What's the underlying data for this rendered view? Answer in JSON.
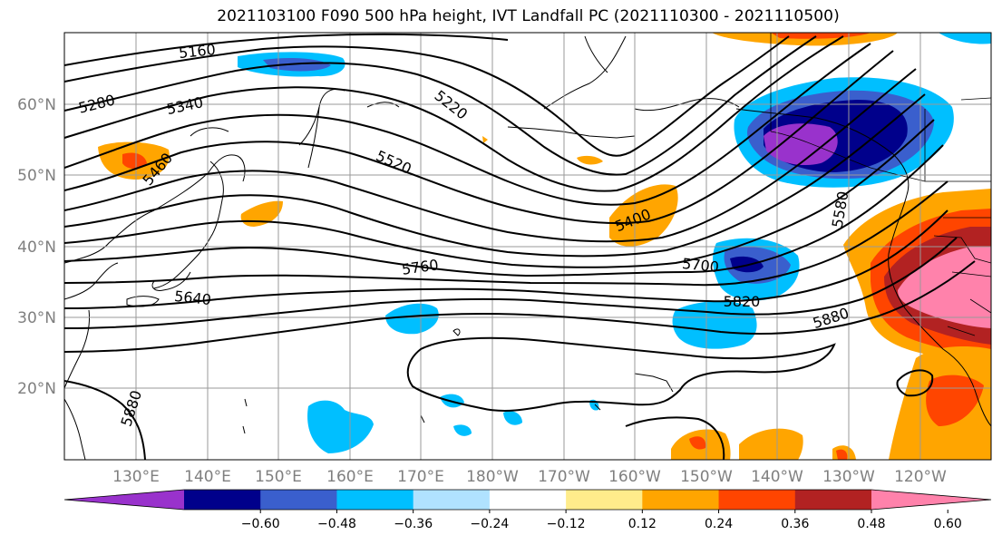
{
  "title": "2021103100 F090 500 hPa height, IVT Landfall PC (2021110300 - 2021110500)",
  "map": {
    "projection": "PlateCarree",
    "extent_lon": [
      120,
      250
    ],
    "extent_lat": [
      10,
      70
    ],
    "gridlines": true,
    "coastlines": true,
    "lat_labels": [
      "20°N",
      "30°N",
      "40°N",
      "50°N",
      "60°N"
    ],
    "lon_labels": [
      "130°E",
      "140°E",
      "150°E",
      "160°E",
      "170°E",
      "180°W",
      "170°W",
      "160°W",
      "150°W",
      "140°W",
      "130°W",
      "120°W"
    ]
  },
  "contours": {
    "field": "500 hPa height",
    "interval": 60,
    "labels": [
      "5160",
      "5280",
      "5340",
      "5220",
      "5520",
      "5460",
      "5400",
      "5580",
      "5640",
      "5760",
      "5700",
      "5820",
      "5880",
      "5880"
    ]
  },
  "colorbar": {
    "orientation": "horizontal",
    "extend": "both",
    "ticks": [
      "−0.60",
      "−0.48",
      "−0.36",
      "−0.24",
      "−0.12",
      "0.12",
      "0.24",
      "0.36",
      "0.48",
      "0.60"
    ],
    "colors": [
      "#9932cc",
      "#00008b",
      "#3a5fcd",
      "#00bfff",
      "#b0e2ff",
      "#ffffff",
      "#ffec8b",
      "#ffa500",
      "#ff4500",
      "#b22222",
      "#ff82ab"
    ]
  }
}
